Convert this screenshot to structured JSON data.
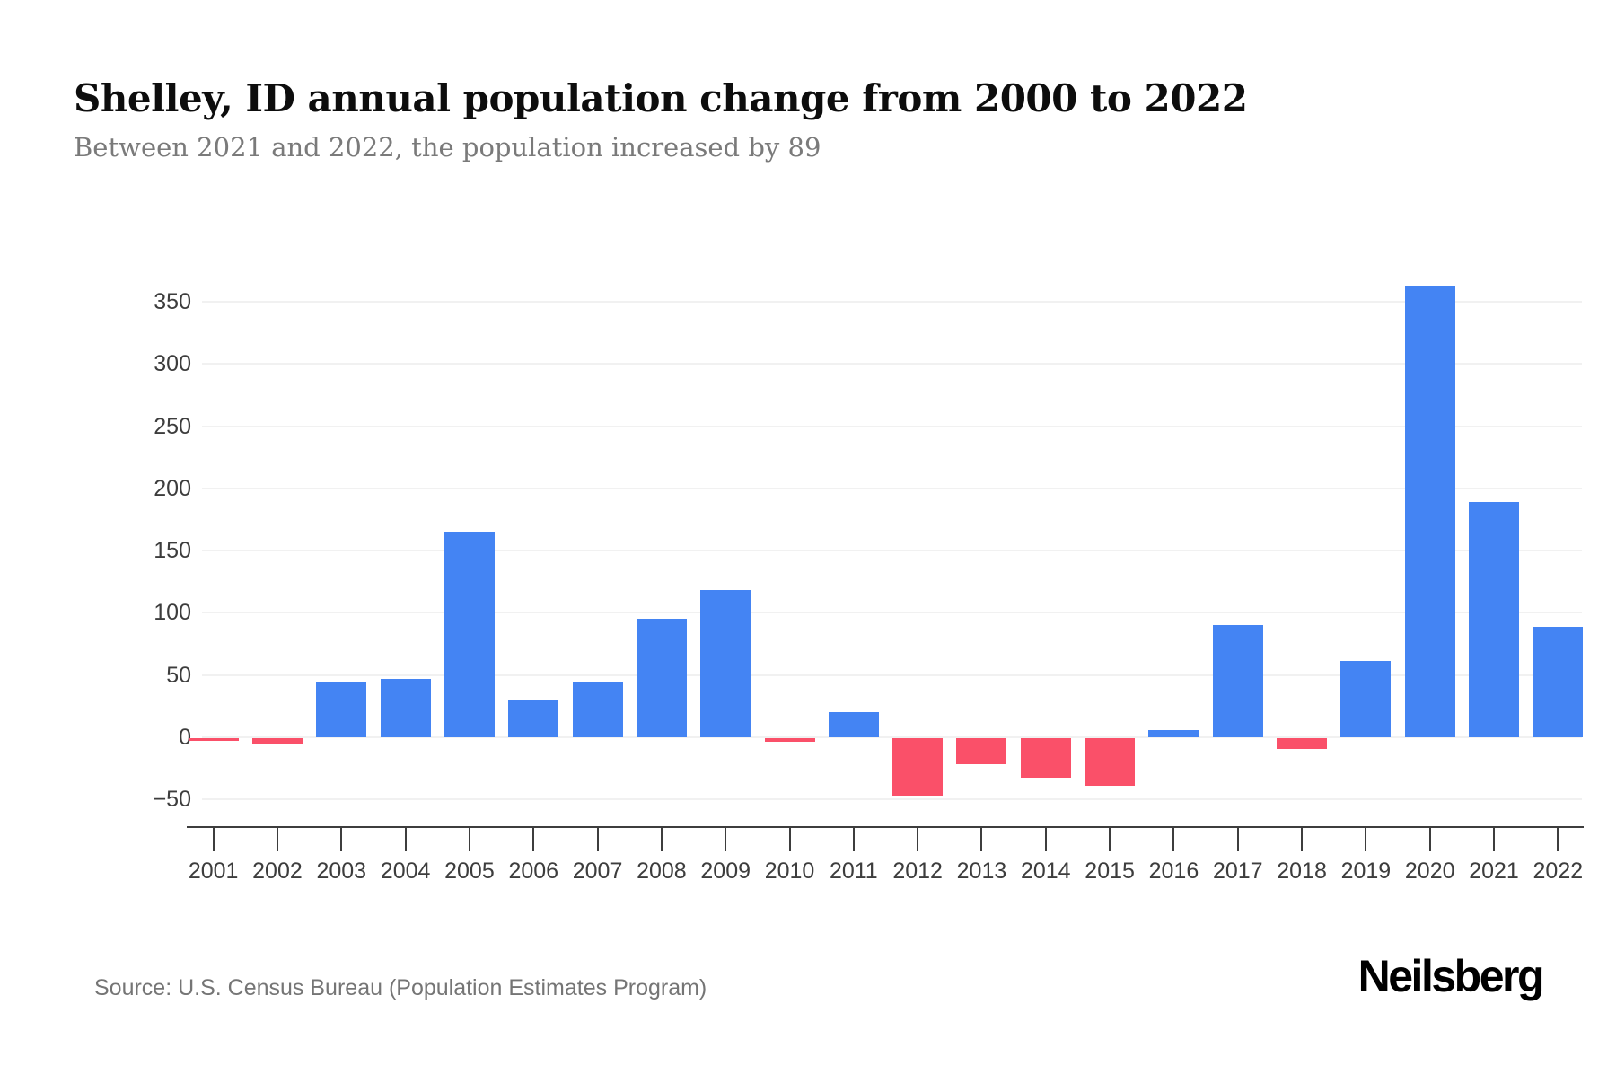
{
  "page": {
    "title": "Shelley, ID annual population change from 2000 to 2022",
    "subtitle": "Between 2021 and 2022, the population increased by 89",
    "source": "Source: U.S. Census Bureau (Population Estimates Program)",
    "brand": "Neilsberg"
  },
  "colors": {
    "positive_bar": "#4484F3",
    "negative_bar": "#FA5069",
    "axis": "#3d3d3d",
    "grid": "#f1f1f1",
    "title": "#0d0d0d",
    "subtitle": "#7a7a7a",
    "source": "#757575"
  },
  "chart_data": {
    "type": "bar",
    "title": "Shelley, ID annual population change from 2000 to 2022",
    "subtitle": "Between 2021 and 2022, the population increased by 89",
    "categories": [
      "2001",
      "2002",
      "2003",
      "2004",
      "2005",
      "2006",
      "2007",
      "2008",
      "2009",
      "2010",
      "2011",
      "2012",
      "2013",
      "2014",
      "2015",
      "2016",
      "2017",
      "2018",
      "2019",
      "2020",
      "2021",
      "2022"
    ],
    "values": [
      -2,
      -4,
      44,
      47,
      165,
      30,
      44,
      95,
      118,
      -3,
      20,
      -46,
      -21,
      -32,
      -38,
      6,
      90,
      -9,
      61,
      363,
      189,
      89
    ],
    "xlabel": "",
    "ylabel": "",
    "ylim": [
      -50,
      350
    ],
    "yticks": [
      350,
      300,
      250,
      200,
      150,
      100,
      50,
      0,
      -50
    ],
    "grid": true,
    "legend": false,
    "positive_color": "#4484F3",
    "negative_color": "#FA5069"
  }
}
